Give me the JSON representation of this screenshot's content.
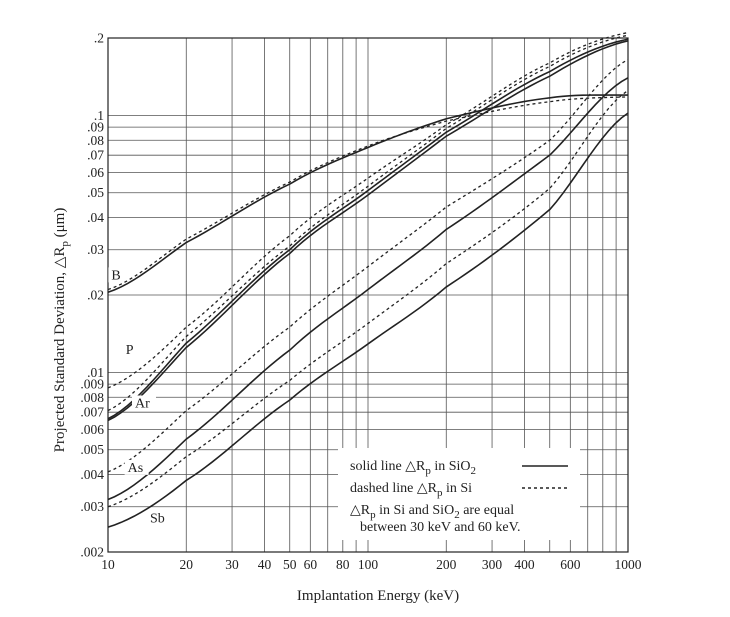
{
  "chart_data": {
    "type": "line",
    "title": "",
    "xlabel": "Implantation Energy (keV)",
    "ylabel_prefix": "Projected Standard Deviation, ",
    "ylabel_symbol": "△R",
    "ylabel_subscript": "p",
    "ylabel_suffix": " (μm)",
    "x_scale": "log",
    "y_scale": "log",
    "xlim": [
      10,
      1000
    ],
    "ylim": [
      0.002,
      0.2
    ],
    "grid": true,
    "x_ticks": [
      {
        "value": 10,
        "label": "10"
      },
      {
        "value": 20,
        "label": "20"
      },
      {
        "value": 30,
        "label": "30"
      },
      {
        "value": 40,
        "label": "40"
      },
      {
        "value": 50,
        "label": "50"
      },
      {
        "value": 60,
        "label": "60"
      },
      {
        "value": 80,
        "label": "80"
      },
      {
        "value": 100,
        "label": "100"
      },
      {
        "value": 200,
        "label": "200"
      },
      {
        "value": 300,
        "label": "300"
      },
      {
        "value": 400,
        "label": "400"
      },
      {
        "value": 600,
        "label": "600"
      },
      {
        "value": 1000,
        "label": "1000"
      }
    ],
    "y_ticks": [
      {
        "value": 0.2,
        "label": ".2"
      },
      {
        "value": 0.1,
        "label": ".1"
      },
      {
        "value": 0.09,
        "label": ".09"
      },
      {
        "value": 0.08,
        "label": ".08"
      },
      {
        "value": 0.07,
        "label": ".07"
      },
      {
        "value": 0.06,
        "label": ".06"
      },
      {
        "value": 0.05,
        "label": ".05"
      },
      {
        "value": 0.04,
        "label": ".04"
      },
      {
        "value": 0.03,
        "label": ".03"
      },
      {
        "value": 0.02,
        "label": ".02"
      },
      {
        "value": 0.01,
        "label": ".01"
      },
      {
        "value": 0.009,
        "label": ".009"
      },
      {
        "value": 0.008,
        "label": ".008"
      },
      {
        "value": 0.007,
        "label": ".007"
      },
      {
        "value": 0.006,
        "label": ".006"
      },
      {
        "value": 0.005,
        "label": ".005"
      },
      {
        "value": 0.004,
        "label": ".004"
      },
      {
        "value": 0.003,
        "label": ".003"
      },
      {
        "value": 0.002,
        "label": ".002"
      }
    ],
    "series": [
      {
        "name": "B",
        "medium": "SiO2",
        "style": "solid",
        "x": [
          10,
          20,
          50,
          100,
          200,
          500,
          1000
        ],
        "y": [
          0.0205,
          0.032,
          0.054,
          0.075,
          0.097,
          0.117,
          0.12
        ]
      },
      {
        "name": "B",
        "medium": "Si",
        "style": "dashed",
        "x": [
          10,
          20,
          50,
          100,
          200,
          500,
          1000
        ],
        "y": [
          0.021,
          0.033,
          0.055,
          0.076,
          0.095,
          0.113,
          0.118
        ]
      },
      {
        "name": "P",
        "medium": "SiO2",
        "style": "solid",
        "x": [
          10,
          20,
          50,
          100,
          200,
          500,
          1000
        ],
        "y": [
          0.0066,
          0.013,
          0.03,
          0.051,
          0.086,
          0.148,
          0.198
        ]
      },
      {
        "name": "P",
        "medium": "Si",
        "style": "dashed",
        "x": [
          10,
          20,
          50,
          100,
          200,
          500,
          1000
        ],
        "y": [
          0.0087,
          0.015,
          0.034,
          0.057,
          0.092,
          0.16,
          0.21
        ]
      },
      {
        "name": "Ar",
        "medium": "SiO2",
        "style": "solid",
        "x": [
          10,
          20,
          50,
          100,
          200,
          500,
          1000
        ],
        "y": [
          0.0065,
          0.0125,
          0.029,
          0.049,
          0.083,
          0.142,
          0.195
        ]
      },
      {
        "name": "Ar",
        "medium": "Si",
        "style": "dashed",
        "x": [
          10,
          20,
          50,
          100,
          200,
          500,
          1000
        ],
        "y": [
          0.0071,
          0.0138,
          0.031,
          0.053,
          0.089,
          0.155,
          0.205
        ]
      },
      {
        "name": "As",
        "medium": "SiO2",
        "style": "solid",
        "x": [
          10,
          20,
          50,
          100,
          200,
          500,
          1000
        ],
        "y": [
          0.0032,
          0.0055,
          0.0122,
          0.021,
          0.036,
          0.07,
          0.14
        ]
      },
      {
        "name": "As",
        "medium": "Si",
        "style": "dashed",
        "x": [
          10,
          20,
          50,
          100,
          200,
          500,
          1000
        ],
        "y": [
          0.0041,
          0.0071,
          0.015,
          0.0258,
          0.044,
          0.08,
          0.165
        ]
      },
      {
        "name": "Sb",
        "medium": "SiO2",
        "style": "solid",
        "x": [
          10,
          20,
          50,
          100,
          200,
          500,
          1000
        ],
        "y": [
          0.0025,
          0.0038,
          0.0078,
          0.0129,
          0.0215,
          0.043,
          0.102
        ]
      },
      {
        "name": "Sb",
        "medium": "Si",
        "style": "dashed",
        "x": [
          10,
          20,
          50,
          100,
          200,
          500,
          1000
        ],
        "y": [
          0.003,
          0.0047,
          0.0093,
          0.0155,
          0.0265,
          0.052,
          0.125
        ]
      }
    ],
    "curve_labels": [
      {
        "text": "B",
        "x": 10.3,
        "y": 0.023
      },
      {
        "text": "P",
        "x": 11.7,
        "y": 0.0118
      },
      {
        "text": "Ar",
        "x": 12.7,
        "y": 0.0073
      },
      {
        "text": "As",
        "x": 11.9,
        "y": 0.0041
      },
      {
        "text": "Sb",
        "x": 14.5,
        "y": 0.0026
      }
    ],
    "legend": {
      "placement": "bottom-right",
      "solid_prefix": "solid line △R",
      "solid_sub": "p",
      "solid_mid": " in  SiO",
      "solid_sub2": "2",
      "dashed_prefix": "dashed line △R",
      "dashed_sub": "p",
      "dashed_mid": " in  Si",
      "note_line1_prefix": "△R",
      "note_line1_sub": "p",
      "note_line1_mid": " in  Si and SiO",
      "note_line1_sub2": "2",
      "note_line1_suffix": " are equal",
      "note_line2": "between 30 keV and 60 keV."
    }
  }
}
